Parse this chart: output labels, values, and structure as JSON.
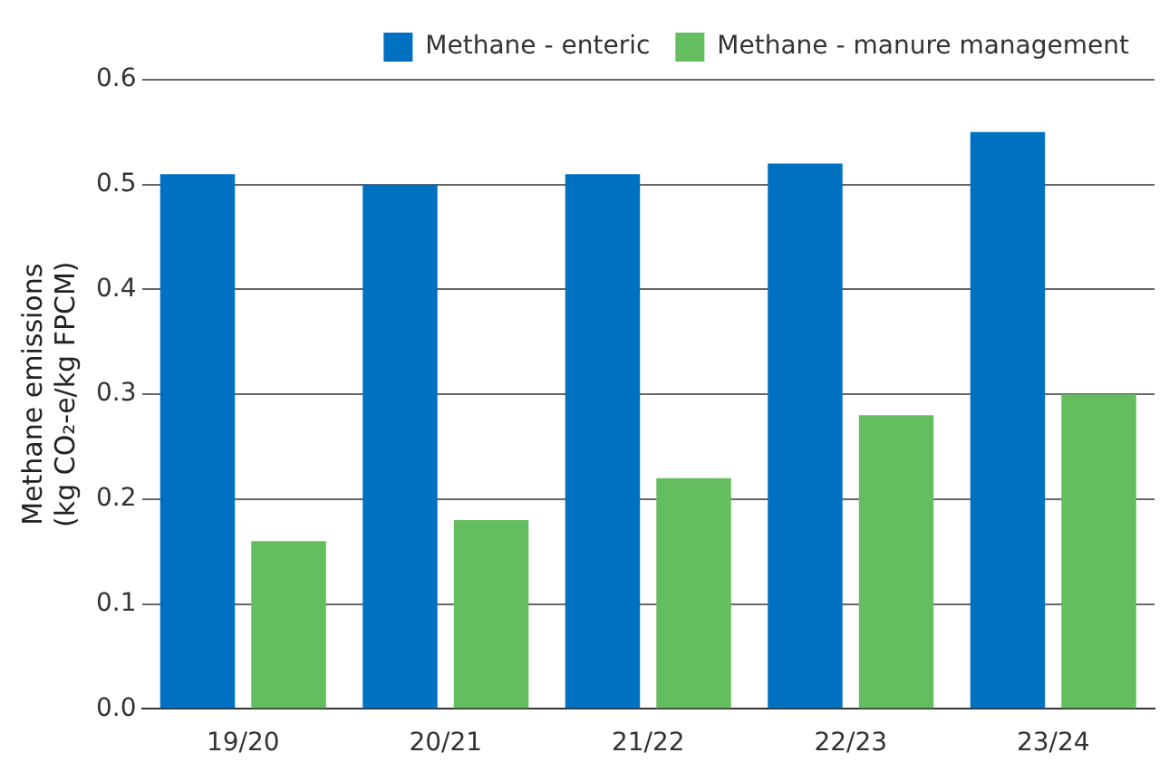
{
  "chart_data": {
    "type": "bar",
    "ylabel": "Methane emissions\n(kg CO₂-e/kg FPCM)",
    "categories": [
      "19/20",
      "20/21",
      "21/22",
      "22/23",
      "23/24"
    ],
    "series": [
      {
        "name": "Methane - enteric",
        "color": "#0070c0",
        "values": [
          0.51,
          0.5,
          0.51,
          0.52,
          0.55
        ]
      },
      {
        "name": "Methane - manure management",
        "color": "#64bd5f",
        "values": [
          0.16,
          0.18,
          0.22,
          0.28,
          0.3
        ]
      }
    ],
    "ylim": [
      0,
      0.6
    ],
    "yticks": [
      {
        "value": 0,
        "label": "0.0"
      },
      0.1,
      0.2,
      0.3,
      0.4,
      0.5,
      0.6
    ],
    "grid": "y",
    "legend": "top right"
  }
}
